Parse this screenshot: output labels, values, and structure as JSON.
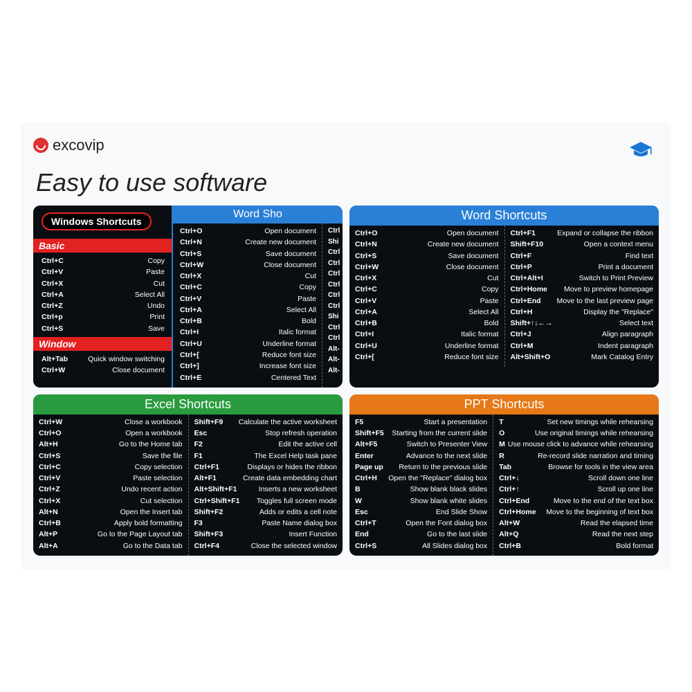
{
  "brand": "excovip",
  "tagline": "Easy to use software",
  "colors": {
    "blue": "#2a7fd6",
    "green": "#2a9a3f",
    "orange": "#e67817",
    "red": "#e22121",
    "card_bg": "#0a0e12",
    "page_bg": "#f8f9fb"
  },
  "cards": {
    "win": {
      "badge": "Windows Shortcuts",
      "sections": [
        {
          "title": "Basic",
          "rows": [
            [
              "Ctrl+C",
              "Copy"
            ],
            [
              "Ctrl+V",
              "Paste"
            ],
            [
              "Ctrl+X",
              "Cut"
            ],
            [
              "Ctrl+A",
              "Select All"
            ],
            [
              "Ctrl+Z",
              "Undo"
            ],
            [
              "Ctrl+p",
              "Print"
            ],
            [
              "Ctrl+S",
              "Save"
            ]
          ]
        },
        {
          "title": "Window",
          "rows": [
            [
              "Alt+Tab",
              "Quick window switching"
            ],
            [
              "Ctrl+W",
              "Close document"
            ]
          ]
        }
      ],
      "right_title": "Word Sho",
      "right_cols": [
        [
          [
            "Ctrl+O",
            "Open document"
          ],
          [
            "Ctrl+N",
            "Create new document"
          ],
          [
            "Ctrl+S",
            "Save document"
          ],
          [
            "Ctrl+W",
            "Close document"
          ],
          [
            "Ctrl+X",
            "Cut"
          ],
          [
            "Ctrl+C",
            "Copy"
          ],
          [
            "Ctrl+V",
            "Paste"
          ],
          [
            "Ctrl+A",
            "Select All"
          ],
          [
            "Ctrl+B",
            "Bold"
          ],
          [
            "Ctrl+I",
            "Italic format"
          ],
          [
            "Ctrl+U",
            "Underline format"
          ],
          [
            "Ctrl+[",
            "Reduce font size"
          ],
          [
            "Ctrl+]",
            "Increase font size"
          ],
          [
            "Ctrl+E",
            "Centered Text"
          ]
        ],
        [
          [
            "Ctrl",
            ""
          ],
          [
            "Shi",
            ""
          ],
          [
            "Ctrl",
            ""
          ],
          [
            "Ctrl",
            ""
          ],
          [
            "Ctrl",
            ""
          ],
          [
            "Ctrl",
            ""
          ],
          [
            "Ctrl",
            ""
          ],
          [
            "Ctrl",
            ""
          ],
          [
            "Shi",
            ""
          ],
          [
            "Ctrl",
            ""
          ],
          [
            "Ctrl",
            ""
          ],
          [
            "Alt-",
            ""
          ],
          [
            "Alt-",
            ""
          ],
          [
            "Alt-",
            ""
          ]
        ]
      ]
    },
    "word": {
      "title": "Word Shortcuts",
      "left": [
        [
          "Ctrl+O",
          "Open document"
        ],
        [
          "Ctrl+N",
          "Create new document"
        ],
        [
          "Ctrl+S",
          "Save document"
        ],
        [
          "Ctrl+W",
          "Close document"
        ],
        [
          "Ctrl+X",
          "Cut"
        ],
        [
          "Ctrl+C",
          "Copy"
        ],
        [
          "Ctrl+V",
          "Paste"
        ],
        [
          "Ctrl+A",
          "Select All"
        ],
        [
          "Ctrl+B",
          "Bold"
        ],
        [
          "Ctrl+I",
          "Italic format"
        ],
        [
          "Ctrl+U",
          "Underline format"
        ],
        [
          "Ctrl+[",
          "Reduce font size"
        ]
      ],
      "right": [
        [
          "Ctrl+F1",
          "Expand or collapse the ribbon"
        ],
        [
          "Shift+F10",
          "Open a context menu"
        ],
        [
          "Ctrl+F",
          "Find text"
        ],
        [
          "Ctrl+P",
          "Print a document"
        ],
        [
          "Ctrl+Alt+I",
          "Switch to Print Preview"
        ],
        [
          "Ctrl+Home",
          "Move to preview homepage"
        ],
        [
          "Ctrl+End",
          "Move to the last preview page"
        ],
        [
          "Ctrl+H",
          "Display the \"Replace\""
        ],
        [
          "Shift+↑↓←→",
          "Select text"
        ],
        [
          "Ctrl+J",
          "Align paragraph"
        ],
        [
          "Ctrl+M",
          "Indent paragraph"
        ],
        [
          "Alt+Shift+O",
          "Mark Catalog Entry"
        ]
      ]
    },
    "excel": {
      "title": "Excel Shortcuts",
      "left": [
        [
          "Ctrl+W",
          "Close a workbook"
        ],
        [
          "Ctrl+O",
          "Open a workbook"
        ],
        [
          "Alt+H",
          "Go to the Home tab"
        ],
        [
          "Ctrl+S",
          "Save the file"
        ],
        [
          "Ctrl+C",
          "Copy selection"
        ],
        [
          "Ctrl+V",
          "Paste selection"
        ],
        [
          "Ctrl+Z",
          "Undo recent action"
        ],
        [
          "Ctrl+X",
          "Cut selection"
        ],
        [
          "Alt+N",
          "Open the Insert tab"
        ],
        [
          "Ctrl+B",
          "Apply bold formatting"
        ],
        [
          "Alt+P",
          "Go to the Page Layout tab"
        ],
        [
          "Alt+A",
          "Go to the Data tab"
        ]
      ],
      "right": [
        [
          "Shift+F9",
          "Calculate the active worksheet"
        ],
        [
          "Esc",
          "Stop refresh operation"
        ],
        [
          "F2",
          "Edit the active cell"
        ],
        [
          "F1",
          "The Excel Help task pane"
        ],
        [
          "Ctrl+F1",
          "Displays or hides the ribbon"
        ],
        [
          "Alt+F1",
          "Create data embedding chart"
        ],
        [
          "Alt+Shift+F1",
          "Inserts a new worksheet"
        ],
        [
          "Ctrl+Shift+F1",
          "Toggles full screen mode"
        ],
        [
          "Shift+F2",
          "Adds or edits a cell note"
        ],
        [
          "F3",
          "Paste Name dialog box"
        ],
        [
          "Shift+F3",
          "Insert Function"
        ],
        [
          "Ctrl+F4",
          "Close the selected window"
        ]
      ]
    },
    "ppt": {
      "title": "PPT Shortcuts",
      "left": [
        [
          "F5",
          "Start a presentation"
        ],
        [
          "Shift+F5",
          "Starting from the current slide"
        ],
        [
          "Alt+F5",
          "Switch to Presenter View"
        ],
        [
          "Enter",
          "Advance to the next slide"
        ],
        [
          "Page up",
          "Return to the previous slide"
        ],
        [
          "Ctrl+H",
          "Open the \"Replace\" dialog box"
        ],
        [
          "B",
          "Show blank black slides"
        ],
        [
          "W",
          "Show blank white slides"
        ],
        [
          "Esc",
          "End Slide Show"
        ],
        [
          "Ctrl+T",
          "Open the Font dialog box"
        ],
        [
          "End",
          "Go to the last slide"
        ],
        [
          "Ctrl+S",
          "All Slides dialog box"
        ]
      ],
      "right": [
        [
          "T",
          "Set new timings while rehearsing"
        ],
        [
          "O",
          "Use original timings while rehearsing"
        ],
        [
          "M",
          "Use mouse click to advance while rehearsing"
        ],
        [
          "R",
          "Re-record slide narration and timing"
        ],
        [
          "Tab",
          "Browse for tools in the view area"
        ],
        [
          "Ctrl+↓",
          "Scroll down one line"
        ],
        [
          "Ctrl+↑",
          "Scroll up one line"
        ],
        [
          "Ctrl+End",
          "Move to the end of the text box"
        ],
        [
          "Ctrl+Home",
          "Move to the beginning of text box"
        ],
        [
          "Alt+W",
          "Read the elapsed time"
        ],
        [
          "Alt+Q",
          "Read the next step"
        ],
        [
          "Ctrl+B",
          "Bold format"
        ]
      ]
    }
  }
}
